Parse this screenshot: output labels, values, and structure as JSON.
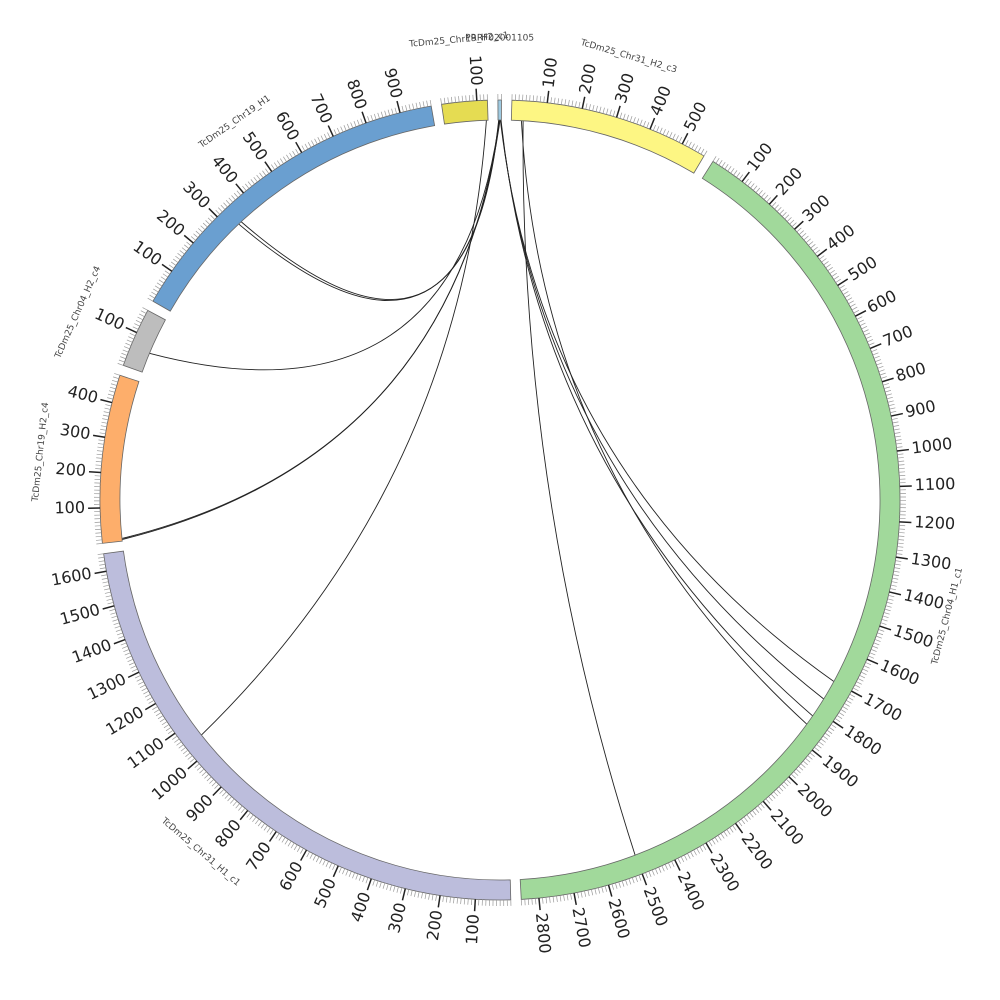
{
  "chart_data": {
    "type": "chord",
    "minor_tick_step": 10,
    "segments": [
      {
        "name": "PRRF02001105",
        "length": 10,
        "color": "#9ecae1"
      },
      {
        "name": "TcDm25_Chr31_H2_c3",
        "length": 570,
        "color": "#fdf683",
        "ticks": [
          100,
          200,
          300,
          400,
          500
        ]
      },
      {
        "name": "TcDm25_Chr04_H1_c1",
        "length": 2850,
        "color": "#a1d99b",
        "ticks": [
          100,
          200,
          300,
          400,
          500,
          600,
          700,
          800,
          900,
          1000,
          1100,
          1200,
          1300,
          1400,
          1500,
          1600,
          1700,
          1800,
          1900,
          2000,
          2100,
          2200,
          2300,
          2400,
          2500,
          2600,
          2700,
          2800
        ]
      },
      {
        "name": "TcDm25_Chr31_H1_c1",
        "length": 1650,
        "color": "#bcbddc",
        "ticks": [
          100,
          200,
          300,
          400,
          500,
          600,
          700,
          800,
          900,
          1000,
          1100,
          1200,
          1300,
          1400,
          1500,
          1600
        ]
      },
      {
        "name": "TcDm25_Chr19_H2_c4",
        "length": 480,
        "color": "#fdae6b",
        "ticks": [
          100,
          200,
          300,
          400
        ]
      },
      {
        "name": "TcDm25_Chr04_H2_c4",
        "length": 170,
        "color": "#bdbdbd",
        "ticks": [
          100
        ]
      },
      {
        "name": "TcDm25_Chr19_H1",
        "length": 990,
        "color": "#6a9fd0",
        "ticks": [
          100,
          200,
          300,
          400,
          500,
          600,
          700,
          800,
          900
        ]
      },
      {
        "name": "TcDm25_Chr19_H2_c1",
        "length": 130,
        "color": "#e5dc52",
        "ticks": [
          100
        ]
      }
    ],
    "links": [
      {
        "from_segment": 0,
        "from_pos": 2,
        "to_segment": 6,
        "to_pos": 330
      },
      {
        "from_segment": 0,
        "from_pos": 3,
        "to_segment": 6,
        "to_pos": 340
      },
      {
        "from_segment": 0,
        "from_pos": 4,
        "to_segment": 5,
        "to_pos": 60
      },
      {
        "from_segment": 0,
        "from_pos": 5,
        "to_segment": 4,
        "to_pos": 5
      },
      {
        "from_segment": 0,
        "from_pos": 6,
        "to_segment": 4,
        "to_pos": 8
      },
      {
        "from_segment": 7,
        "from_pos": 125,
        "to_segment": 3,
        "to_pos": 1050
      },
      {
        "from_segment": 0,
        "from_pos": 7,
        "to_segment": 2,
        "to_pos": 1700
      },
      {
        "from_segment": 0,
        "from_pos": 8,
        "to_segment": 2,
        "to_pos": 1760
      },
      {
        "from_segment": 0,
        "from_pos": 9,
        "to_segment": 2,
        "to_pos": 1820
      },
      {
        "from_segment": 1,
        "from_pos": 30,
        "to_segment": 2,
        "to_pos": 1850
      },
      {
        "from_segment": 1,
        "from_pos": 35,
        "to_segment": 2,
        "to_pos": 2500
      }
    ]
  }
}
